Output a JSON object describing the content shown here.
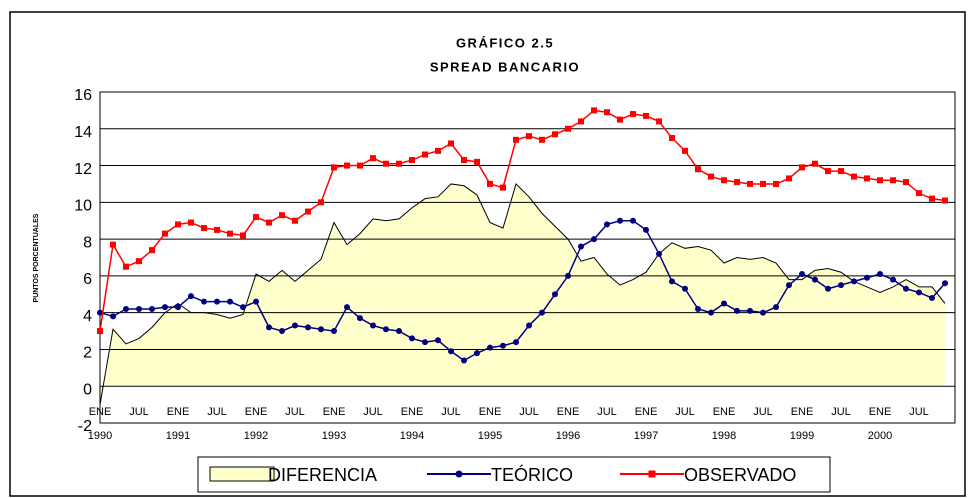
{
  "chart_data": {
    "type": "line",
    "title": "GRÁFICO 2.5",
    "subtitle": "SPREAD BANCARIO",
    "y_label": "PUNTOS PORCENTUALES",
    "categories": [
      "ENE",
      null,
      null,
      "JUL",
      null,
      null,
      "ENE",
      null,
      null,
      "JUL",
      null,
      null,
      "ENE",
      null,
      null,
      "JUL",
      null,
      null,
      "ENE",
      null,
      null,
      "JUL",
      null,
      null,
      "ENE",
      null,
      null,
      "JUL",
      null,
      null,
      "ENE",
      null,
      null,
      "JUL",
      null,
      null,
      "ENE",
      null,
      null,
      "JUL",
      null,
      null,
      "ENE",
      null,
      null,
      "JUL",
      null,
      null,
      "ENE",
      null,
      null,
      "JUL",
      null,
      null,
      "ENE",
      null,
      null,
      "JUL",
      null,
      null,
      "ENE",
      null,
      null,
      "JUL",
      null,
      null
    ],
    "year_labels": [
      "1990",
      "1991",
      "1992",
      "1993",
      "1994",
      "1995",
      "1996",
      "1997",
      "1998",
      "1999",
      "2000"
    ],
    "ylim": [
      -2,
      16
    ],
    "yticks": [
      -2,
      0,
      2,
      4,
      6,
      8,
      10,
      12,
      14,
      16
    ],
    "grid": true,
    "series": [
      {
        "name": "DIFERENCIA",
        "style": "area",
        "color": "#ffffcc",
        "values": [
          -1.0,
          3.1,
          2.3,
          2.6,
          3.2,
          4.0,
          4.5,
          4.0,
          4.0,
          3.9,
          3.7,
          3.9,
          6.1,
          5.7,
          6.3,
          5.7,
          6.3,
          6.9,
          8.9,
          7.7,
          8.3,
          9.1,
          9.0,
          9.1,
          9.7,
          10.2,
          10.3,
          11.0,
          10.9,
          10.4,
          8.9,
          8.6,
          11.0,
          10.3,
          9.4,
          8.7,
          8.0,
          6.8,
          7.0,
          6.1,
          5.5,
          5.8,
          6.2,
          7.2,
          7.8,
          7.5,
          7.6,
          7.4,
          6.7,
          7.0,
          6.9,
          7.0,
          6.7,
          5.8,
          5.8,
          6.3,
          6.4,
          6.2,
          5.7,
          5.4,
          5.1,
          5.4,
          5.8,
          5.4,
          5.4,
          4.5
        ]
      },
      {
        "name": "TEÓRICO",
        "style": "circle",
        "color": "#000080",
        "values": [
          4.0,
          3.8,
          4.2,
          4.2,
          4.2,
          4.3,
          4.3,
          4.9,
          4.6,
          4.6,
          4.6,
          4.3,
          4.6,
          3.2,
          3.0,
          3.3,
          3.2,
          3.1,
          3.0,
          4.3,
          3.7,
          3.3,
          3.1,
          3.0,
          2.6,
          2.4,
          2.5,
          1.9,
          1.4,
          1.8,
          2.1,
          2.2,
          2.4,
          3.3,
          4.0,
          5.0,
          6.0,
          7.6,
          8.0,
          8.8,
          9.0,
          9.0,
          8.5,
          7.2,
          5.7,
          5.3,
          4.2,
          4.0,
          4.5,
          4.1,
          4.1,
          4.0,
          4.3,
          5.5,
          6.1,
          5.8,
          5.3,
          5.5,
          5.7,
          5.9,
          6.1,
          5.8,
          5.3,
          5.1,
          4.8,
          5.6
        ]
      },
      {
        "name": "OBSERVADO",
        "style": "square",
        "color": "#ff0000",
        "values": [
          3.0,
          7.7,
          6.5,
          6.8,
          7.4,
          8.3,
          8.8,
          8.9,
          8.6,
          8.5,
          8.3,
          8.2,
          9.2,
          8.9,
          9.3,
          9.0,
          9.5,
          10.0,
          11.9,
          12.0,
          12.0,
          12.4,
          12.1,
          12.1,
          12.3,
          12.6,
          12.8,
          13.2,
          12.3,
          12.2,
          11.0,
          10.8,
          13.4,
          13.6,
          13.4,
          13.7,
          14.0,
          14.4,
          15.0,
          14.9,
          14.5,
          14.8,
          14.7,
          14.4,
          13.5,
          12.8,
          11.8,
          11.4,
          11.2,
          11.1,
          11.0,
          11.0,
          11.0,
          11.3,
          11.9,
          12.1,
          11.7,
          11.7,
          11.4,
          11.3,
          11.2,
          11.2,
          11.1,
          10.5,
          10.2,
          10.1
        ]
      }
    ]
  }
}
